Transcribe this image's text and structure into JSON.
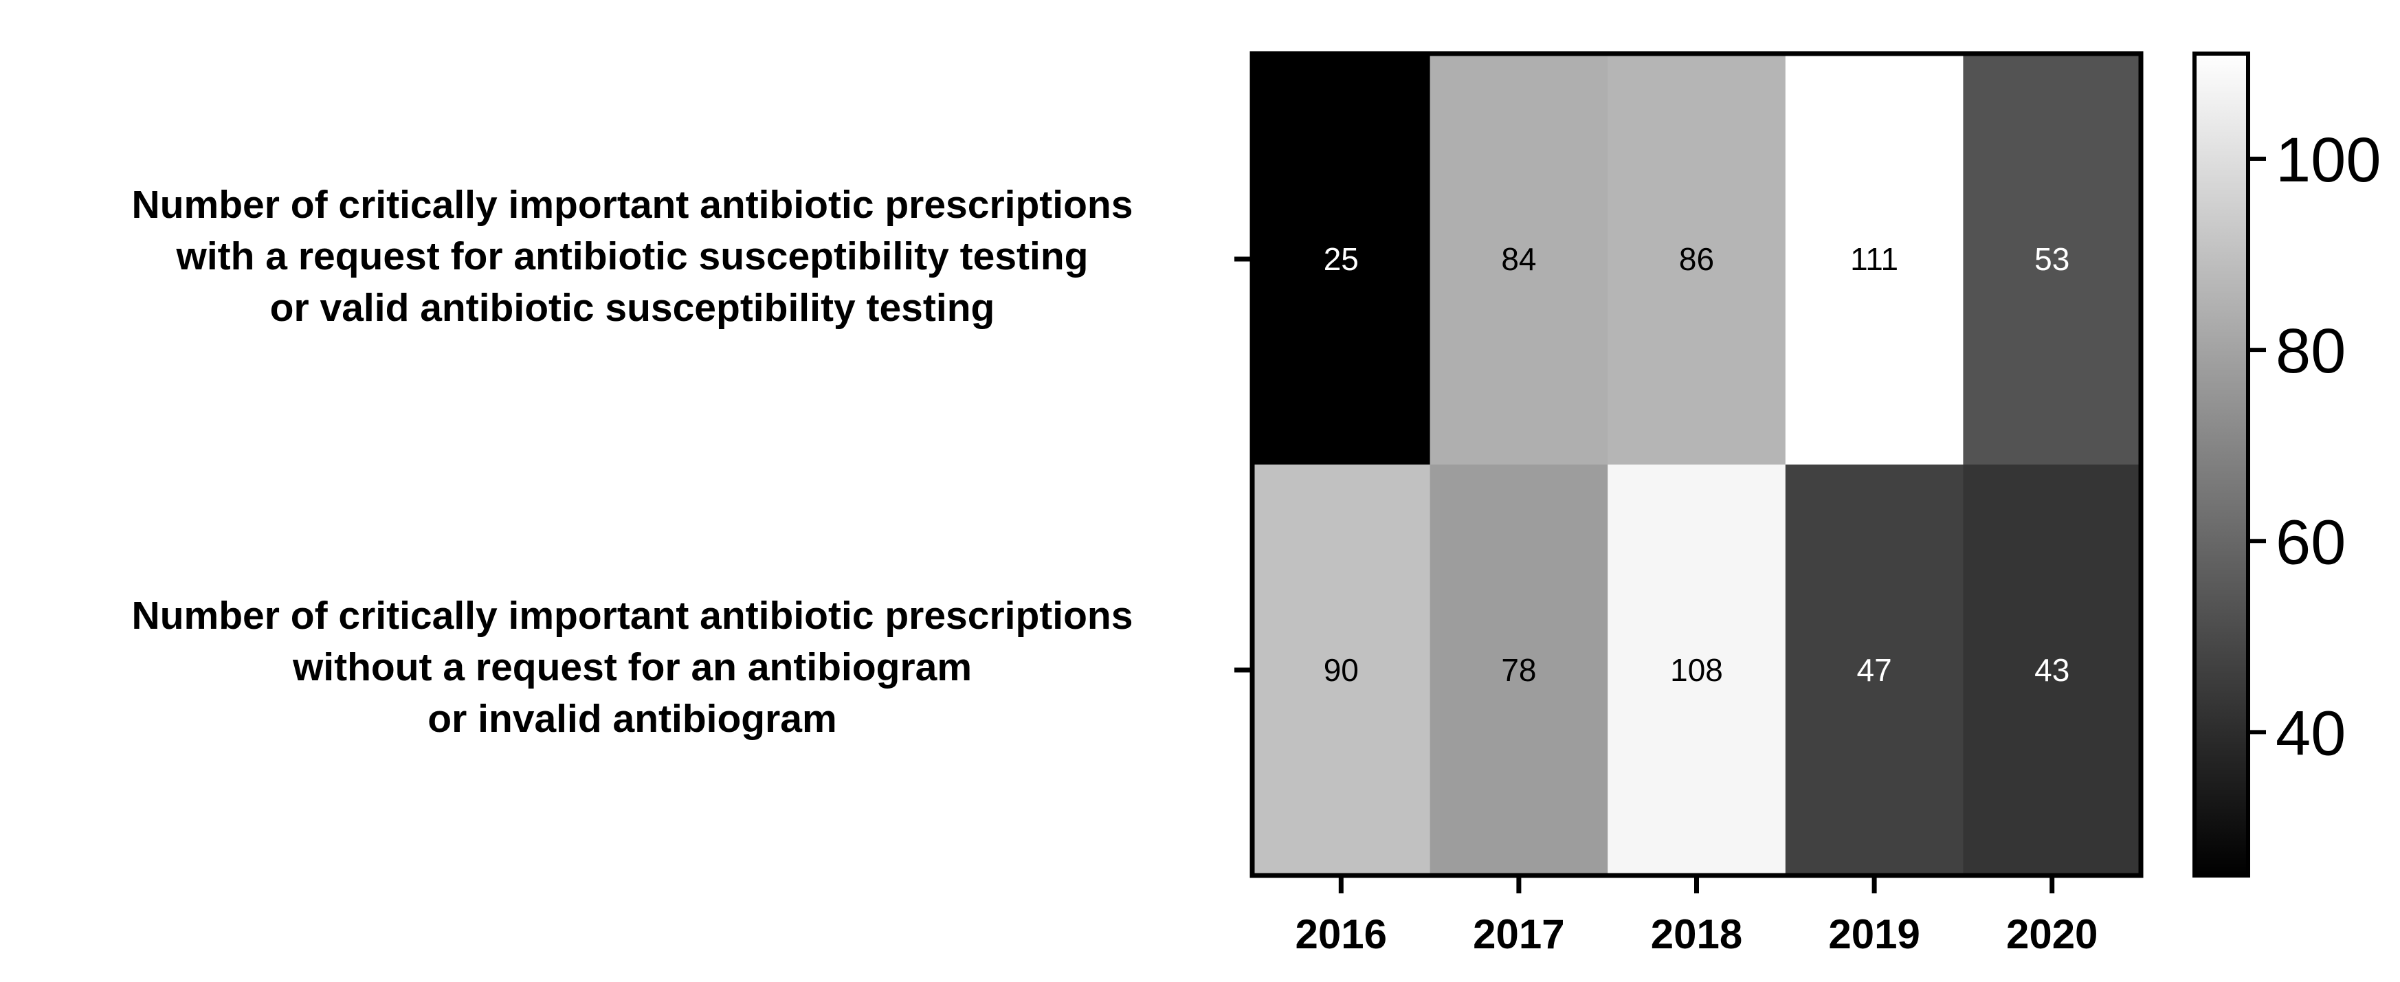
{
  "chart_data": {
    "type": "heatmap",
    "title": "",
    "xlabel": "",
    "ylabel": "",
    "columns": [
      "2016",
      "2017",
      "2018",
      "2019",
      "2020"
    ],
    "rows": [
      {
        "lines": [
          "Number of critically important antibiotic prescriptions",
          "with a request for antibiotic susceptibility testing",
          "or valid antibiotic susceptibility testing"
        ],
        "values": [
          25,
          84,
          86,
          111,
          53
        ]
      },
      {
        "lines": [
          "Number of critically important antibiotic prescriptions",
          "without a request for an antibiogram",
          "or invalid antibiogram"
        ],
        "values": [
          90,
          78,
          108,
          47,
          43
        ]
      }
    ],
    "colorscale": {
      "min": 25,
      "max": 111,
      "low_color": "#000000",
      "high_color": "#ffffff",
      "ticks": [
        40,
        60,
        80,
        100
      ]
    },
    "legend": "right"
  }
}
